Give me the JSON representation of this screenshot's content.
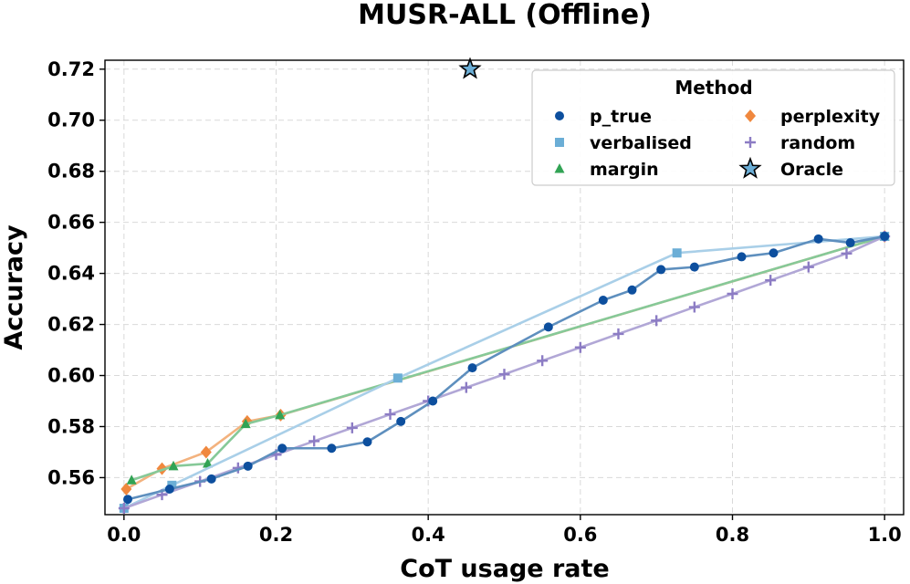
{
  "chart_data": {
    "type": "line",
    "title": "MUSR-ALL (Offline)",
    "xlabel": "CoT usage rate",
    "ylabel": "Accuracy",
    "xlim": [
      -0.025,
      1.025
    ],
    "ylim": [
      0.5455,
      0.7235
    ],
    "xticks": [
      0.0,
      0.2,
      0.4,
      0.6,
      0.8,
      1.0
    ],
    "xtick_labels": [
      "0.0",
      "0.2",
      "0.4",
      "0.6",
      "0.8",
      "1.0"
    ],
    "yticks": [
      0.56,
      0.58,
      0.6,
      0.62,
      0.64,
      0.66,
      0.68,
      0.7,
      0.72
    ],
    "ytick_labels": [
      "0.56",
      "0.58",
      "0.60",
      "0.62",
      "0.64",
      "0.66",
      "0.68",
      "0.70",
      "0.72"
    ],
    "grid": true,
    "legend": {
      "title": "Method",
      "placement": "top-right",
      "columns": 2
    },
    "series": [
      {
        "name": "p_true",
        "color": "#0d4f9e",
        "line_color": "#5e8fbe",
        "marker": "circle",
        "x": [
          0.005,
          0.06,
          0.115,
          0.163,
          0.208,
          0.273,
          0.32,
          0.364,
          0.406,
          0.458,
          0.558,
          0.63,
          0.668,
          0.706,
          0.75,
          0.812,
          0.854,
          0.913,
          0.955,
          1.0
        ],
        "y": [
          0.5515,
          0.5555,
          0.5595,
          0.5645,
          0.5715,
          0.5715,
          0.574,
          0.582,
          0.59,
          0.603,
          0.619,
          0.6295,
          0.6335,
          0.6415,
          0.6425,
          0.6465,
          0.648,
          0.6535,
          0.652,
          0.6545
        ]
      },
      {
        "name": "verbalised",
        "color": "#6baed6",
        "line_color": "#a9cfe8",
        "marker": "square",
        "x": [
          0.0,
          0.063,
          0.36,
          0.727,
          1.0
        ],
        "y": [
          0.548,
          0.557,
          0.599,
          0.648,
          0.6545
        ]
      },
      {
        "name": "margin",
        "color": "#31a354",
        "line_color": "#86c998",
        "marker": "triangle",
        "x": [
          0.01,
          0.065,
          0.11,
          0.16,
          0.205,
          1.0
        ],
        "y": [
          0.559,
          0.5645,
          0.5655,
          0.581,
          0.5845,
          0.6545
        ]
      },
      {
        "name": "perplexity",
        "color": "#f0883e",
        "line_color": "#f3b27e",
        "marker": "diamond",
        "x": [
          0.003,
          0.05,
          0.108,
          0.162,
          0.206,
          1.0
        ],
        "y": [
          0.5555,
          0.5635,
          0.57,
          0.582,
          0.5845,
          0.6545
        ]
      },
      {
        "name": "random",
        "color": "#8c7cc4",
        "line_color": "#b1a7d6",
        "marker": "plus",
        "x": [
          0.0,
          0.05,
          0.1,
          0.15,
          0.2,
          0.25,
          0.3,
          0.35,
          0.4,
          0.45,
          0.5,
          0.55,
          0.6,
          0.65,
          0.7,
          0.75,
          0.8,
          0.85,
          0.9,
          0.95,
          1.0
        ],
        "y": [
          0.548,
          0.5533,
          0.5585,
          0.5638,
          0.569,
          0.5743,
          0.5795,
          0.5848,
          0.59,
          0.5953,
          0.6005,
          0.6058,
          0.611,
          0.6163,
          0.6215,
          0.6268,
          0.632,
          0.6373,
          0.6425,
          0.6478,
          0.6545
        ]
      },
      {
        "name": "Oracle",
        "color": "#6baed6",
        "marker": "star",
        "x": [
          0.455
        ],
        "y": [
          0.72
        ]
      }
    ]
  }
}
